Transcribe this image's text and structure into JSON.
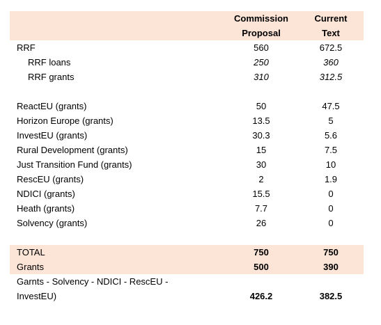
{
  "header": {
    "proposal_line1": "Commission",
    "proposal_line2": "Proposal",
    "current_line1": "Current",
    "current_line2": "Text"
  },
  "rrf": {
    "label": "RRF",
    "proposal": "560",
    "current": "672.5"
  },
  "rrf_loans": {
    "label": "RRF loans",
    "proposal": "250",
    "current": "360"
  },
  "rrf_grants": {
    "label": "RRF grants",
    "proposal": "310",
    "current": "312.5"
  },
  "rows": [
    {
      "label": "ReactEU (grants)",
      "proposal": "50",
      "current": "47.5"
    },
    {
      "label": "Horizon Europe (grants)",
      "proposal": "13.5",
      "current": "5"
    },
    {
      "label": "InvestEU (grants)",
      "proposal": "30.3",
      "current": "5.6"
    },
    {
      "label": "Rural Development (grants)",
      "proposal": "15",
      "current": "7.5"
    },
    {
      "label": "Just Transition Fund (grants)",
      "proposal": "30",
      "current": "10"
    },
    {
      "label": "RescEU (grants)",
      "proposal": "2",
      "current": "1.9"
    },
    {
      "label": "NDICI (grants)",
      "proposal": "15.5",
      "current": "0"
    },
    {
      "label": "Heath (grants)",
      "proposal": "7.7",
      "current": "0"
    },
    {
      "label": "Solvency (grants)",
      "proposal": "26",
      "current": "0"
    }
  ],
  "total": {
    "label": "TOTAL",
    "proposal": "750",
    "current": "750"
  },
  "grants": {
    "label": "Grants",
    "proposal": "500",
    "current": "390"
  },
  "net": {
    "label_line1": "Garnts - Solvency - NDICI - RescEU -",
    "label_line2": "InvestEU)",
    "proposal": "426.2",
    "current": "382.5"
  },
  "colors": {
    "shading": "#fce4d6"
  }
}
